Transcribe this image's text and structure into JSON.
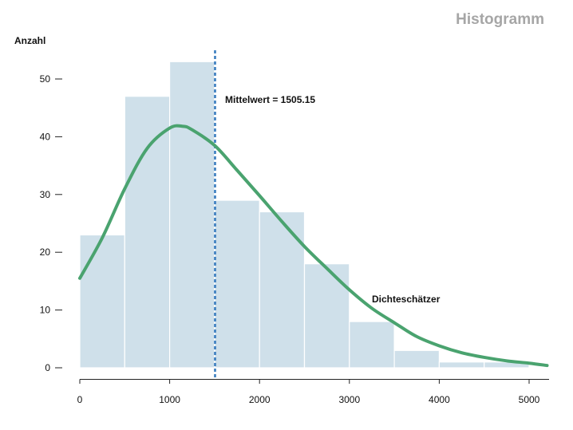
{
  "chart_data": {
    "type": "bar",
    "title": "Histogramm",
    "xlabel": "",
    "ylabel": "Anzahl",
    "xlim": [
      0,
      5200
    ],
    "ylim": [
      0,
      55
    ],
    "x_ticks": [
      "0",
      "1000",
      "2000",
      "3000",
      "4000",
      "5000"
    ],
    "y_ticks": [
      "0",
      "10",
      "20",
      "30",
      "40",
      "50"
    ],
    "bins": [
      {
        "from": 0,
        "to": 500,
        "count": 23
      },
      {
        "from": 500,
        "to": 1000,
        "count": 47
      },
      {
        "from": 1000,
        "to": 1500,
        "count": 53
      },
      {
        "from": 1500,
        "to": 2000,
        "count": 29
      },
      {
        "from": 2000,
        "to": 2500,
        "count": 27
      },
      {
        "from": 2500,
        "to": 3000,
        "count": 18
      },
      {
        "from": 3000,
        "to": 3500,
        "count": 8
      },
      {
        "from": 3500,
        "to": 4000,
        "count": 3
      },
      {
        "from": 4000,
        "to": 4500,
        "count": 1
      },
      {
        "from": 4500,
        "to": 5000,
        "count": 1
      }
    ],
    "density_curve": {
      "label": "Dichteschätzer",
      "x": [
        0,
        250,
        500,
        750,
        1000,
        1150,
        1250,
        1500,
        1750,
        2000,
        2250,
        2500,
        2750,
        3000,
        3250,
        3500,
        3750,
        4000,
        4250,
        4500,
        4750,
        5000,
        5200
      ],
      "y": [
        15.5,
        22.5,
        31.0,
        38.0,
        41.5,
        41.8,
        41.2,
        38.5,
        34.2,
        29.8,
        25.3,
        21.0,
        17.2,
        13.5,
        10.3,
        7.8,
        5.4,
        3.8,
        2.6,
        1.8,
        1.2,
        0.8,
        0.4
      ]
    },
    "mean_line": {
      "value": 1505.15,
      "label": "Mittelwert = 1505.15"
    },
    "grid": false,
    "colors": {
      "bars": "#cfe0ea",
      "bar_edge": "#ffffff",
      "density": "#4aa36f",
      "mean": "#3a7dbf",
      "title": "#a6a6a6",
      "text": "#111111"
    }
  }
}
